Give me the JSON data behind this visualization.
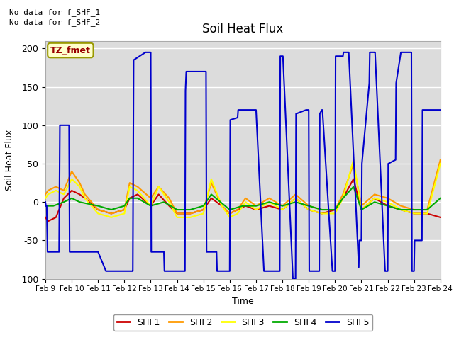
{
  "title": "Soil Heat Flux",
  "ylabel": "Soil Heat Flux",
  "xlabel": "Time",
  "ylim": [
    -100,
    210
  ],
  "yticks": [
    -100,
    -50,
    0,
    50,
    100,
    150,
    200
  ],
  "background_color": "#dcdcdc",
  "annotations": [
    "No data for f_SHF_1",
    "No data for f_SHF_2"
  ],
  "legend_labels": [
    "SHF1",
    "SHF2",
    "SHF3",
    "SHF4",
    "SHF5"
  ],
  "legend_colors": [
    "#cc0000",
    "#ff9900",
    "#ffff00",
    "#00aa00",
    "#0000cc"
  ],
  "tz_label": "TZ_fmet",
  "xtick_labels": [
    "Feb 9",
    "Feb 10",
    "Feb 11",
    "Feb 12",
    "Feb 13",
    "Feb 14",
    "Feb 15",
    "Feb 16",
    "Feb 17",
    "Feb 18",
    "Feb 19",
    "Feb 20",
    "Feb 21",
    "Feb 22",
    "Feb 23",
    "Feb 24"
  ],
  "shf1_x": [
    0,
    0.1,
    0.4,
    0.7,
    1.0,
    1.3,
    1.5,
    2.0,
    2.5,
    3.0,
    3.2,
    3.5,
    4.0,
    4.3,
    4.7,
    5.0,
    5.5,
    6.0,
    6.3,
    6.7,
    7.0,
    7.3,
    7.6,
    8.0,
    8.5,
    9.0,
    9.5,
    10.0,
    10.5,
    11.0,
    11.3,
    11.7,
    12.0,
    12.5,
    13.0,
    13.5,
    14.0,
    14.5,
    15.0
  ],
  "shf1_y": [
    -20,
    -25,
    -20,
    5,
    15,
    10,
    5,
    -10,
    -15,
    -10,
    5,
    10,
    -5,
    10,
    -5,
    -15,
    -15,
    -10,
    5,
    -5,
    -15,
    -10,
    -5,
    -10,
    -5,
    -10,
    5,
    -10,
    -15,
    -10,
    5,
    30,
    -10,
    5,
    -5,
    -10,
    -15,
    -15,
    -20
  ],
  "shf2_x": [
    0,
    0.1,
    0.4,
    0.7,
    1.0,
    1.3,
    1.5,
    2.0,
    2.5,
    3.0,
    3.2,
    3.5,
    4.0,
    4.3,
    4.7,
    5.0,
    5.5,
    6.0,
    6.3,
    6.7,
    7.0,
    7.3,
    7.6,
    8.0,
    8.5,
    9.0,
    9.5,
    10.0,
    10.5,
    11.0,
    11.3,
    11.7,
    12.0,
    12.5,
    13.0,
    13.5,
    14.0,
    14.5,
    15.0
  ],
  "shf2_y": [
    10,
    15,
    20,
    15,
    40,
    25,
    10,
    -10,
    -15,
    -10,
    25,
    20,
    5,
    20,
    5,
    -15,
    -15,
    -10,
    25,
    -5,
    -15,
    -10,
    5,
    -5,
    5,
    -5,
    10,
    -5,
    -10,
    -10,
    10,
    50,
    -5,
    10,
    5,
    -5,
    -10,
    -10,
    55
  ],
  "shf3_x": [
    0,
    0.1,
    0.4,
    0.7,
    1.0,
    1.3,
    1.5,
    2.0,
    2.5,
    3.0,
    3.2,
    3.5,
    4.0,
    4.3,
    4.7,
    5.0,
    5.5,
    6.0,
    6.3,
    6.7,
    7.0,
    7.3,
    7.6,
    8.0,
    8.5,
    9.0,
    9.5,
    10.0,
    10.5,
    11.0,
    11.3,
    11.7,
    12.0,
    12.5,
    13.0,
    13.5,
    14.0,
    14.5,
    15.0
  ],
  "shf3_y": [
    5,
    10,
    15,
    10,
    30,
    20,
    5,
    -15,
    -20,
    -15,
    20,
    15,
    -5,
    20,
    0,
    -20,
    -20,
    -15,
    30,
    -5,
    -20,
    -15,
    0,
    -10,
    0,
    -10,
    5,
    -10,
    -15,
    -15,
    5,
    55,
    -10,
    5,
    0,
    -10,
    -15,
    -15,
    50
  ],
  "shf4_x": [
    0,
    0.3,
    0.7,
    1.0,
    1.3,
    2.0,
    2.5,
    3.0,
    3.2,
    3.5,
    4.0,
    4.5,
    5.0,
    5.5,
    6.0,
    6.3,
    7.0,
    7.5,
    8.0,
    8.5,
    9.0,
    9.5,
    10.0,
    10.5,
    11.0,
    11.3,
    11.7,
    12.0,
    12.5,
    13.0,
    13.5,
    14.0,
    14.5,
    15.0
  ],
  "shf4_y": [
    -5,
    -5,
    0,
    5,
    0,
    -5,
    -10,
    -5,
    5,
    5,
    -5,
    0,
    -10,
    -10,
    -5,
    10,
    -10,
    -5,
    -5,
    0,
    -5,
    0,
    -5,
    -10,
    -10,
    5,
    20,
    -10,
    0,
    -5,
    -10,
    -10,
    -10,
    5
  ],
  "shf5_x": [
    0.0,
    0.02,
    0.05,
    0.08,
    0.1,
    0.5,
    0.52,
    0.55,
    0.9,
    0.92,
    1.0,
    1.02,
    1.5,
    1.52,
    2.0,
    2.3,
    2.32,
    2.35,
    2.9,
    2.92,
    3.0,
    3.3,
    3.32,
    3.35,
    3.8,
    3.82,
    4.0,
    4.02,
    4.2,
    4.22,
    4.5,
    4.52,
    5.0,
    5.3,
    5.32,
    5.35,
    5.7,
    5.72,
    6.1,
    6.12,
    6.5,
    6.52,
    6.9,
    6.92,
    7.0,
    7.02,
    7.3,
    7.32,
    7.6,
    7.62,
    8.0,
    8.3,
    8.32,
    8.35,
    8.9,
    8.92,
    9.0,
    9.02,
    9.4,
    9.42,
    9.5,
    9.52,
    9.9,
    9.92,
    10.0,
    10.02,
    10.4,
    10.42,
    10.5,
    10.52,
    10.9,
    10.92,
    11.0,
    11.02,
    11.3,
    11.32,
    11.5,
    11.52,
    11.9,
    11.92,
    12.0,
    12.02,
    12.3,
    12.32,
    12.5,
    12.52,
    12.9,
    12.92,
    13.0,
    13.02,
    13.3,
    13.32,
    13.5,
    13.52,
    13.9,
    13.92,
    14.0,
    14.02,
    14.3,
    14.32,
    14.5,
    14.52,
    14.9,
    14.92,
    15.0
  ],
  "shf5_y": [
    0,
    -5,
    -5,
    -65,
    -65,
    -65,
    -65,
    100,
    100,
    -65,
    -65,
    -65,
    -65,
    -65,
    -65,
    -90,
    -90,
    -90,
    -90,
    -90,
    -90,
    -90,
    -90,
    185,
    195,
    195,
    195,
    -65,
    -65,
    -65,
    -65,
    -90,
    -90,
    -90,
    145,
    170,
    170,
    170,
    170,
    -65,
    -65,
    -90,
    -90,
    -90,
    -90,
    107,
    110,
    120,
    120,
    120,
    120,
    -90,
    -90,
    -90,
    -90,
    190,
    190,
    190,
    -100,
    -100,
    -100,
    115,
    120,
    120,
    120,
    -90,
    -90,
    115,
    120,
    120,
    -90,
    -90,
    -90,
    190,
    190,
    195,
    195,
    195,
    -85,
    -50,
    -50,
    50,
    155,
    195,
    195,
    195,
    -90,
    -90,
    -90,
    50,
    55,
    155,
    195,
    195,
    195,
    -90,
    -90,
    -50,
    -50,
    120,
    120,
    120,
    120,
    120,
    120
  ]
}
